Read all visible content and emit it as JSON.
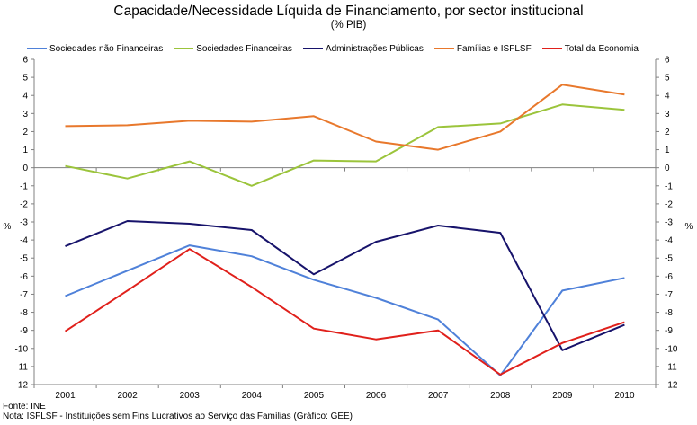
{
  "title": "Capacidade/Necessidade Líquida de Financiamento, por sector institucional",
  "subtitle": "(% PIB)",
  "footer": {
    "source": "Fonte: INE",
    "note": "Nota: ISFLSF - Instituições sem Fins Lucrativos ao Serviço das Famílias  (Gráfico: GEE)"
  },
  "chart_data": {
    "type": "line",
    "title": "Capacidade/Necessidade Líquida de Financiamento, por sector institucional",
    "subtitle": "(% PIB)",
    "xlabel": "",
    "ylabel": "%",
    "ylabel_right": "%",
    "ylim": [
      -12,
      6
    ],
    "yticks": [
      6,
      5,
      4,
      3,
      2,
      1,
      0,
      -1,
      -2,
      -3,
      -4,
      -5,
      -6,
      -7,
      -8,
      -9,
      -10,
      -11,
      -12
    ],
    "legend_position": "top",
    "grid": false,
    "categories": [
      "2001",
      "2002",
      "2003",
      "2004",
      "2005",
      "2006",
      "2007",
      "2008",
      "2009",
      "2010"
    ],
    "series": [
      {
        "name": "Sociedades não Financeiras",
        "color": "#4f81d9",
        "values": [
          -7.1,
          -5.7,
          -4.3,
          -4.9,
          -6.2,
          -7.2,
          -8.4,
          -11.5,
          -6.8,
          -6.1
        ]
      },
      {
        "name": "Sociedades Financeiras",
        "color": "#9bc43b",
        "values": [
          0.1,
          -0.6,
          0.35,
          -1.0,
          0.4,
          0.35,
          2.25,
          2.45,
          3.5,
          3.2
        ]
      },
      {
        "name": "Administrações Públicas",
        "color": "#17136b",
        "values": [
          -4.35,
          -2.95,
          -3.1,
          -3.45,
          -5.9,
          -4.1,
          -3.2,
          -3.6,
          -10.1,
          -8.7
        ]
      },
      {
        "name": "Famílias e ISFLSF",
        "color": "#e8782c",
        "values": [
          2.3,
          2.35,
          2.6,
          2.55,
          2.85,
          1.45,
          1.0,
          2.0,
          4.6,
          4.05
        ]
      },
      {
        "name": "Total da Economia",
        "color": "#e0201b",
        "values": [
          -9.05,
          -6.8,
          -4.5,
          -6.6,
          -8.9,
          -9.5,
          -9.0,
          -11.45,
          -9.7,
          -8.55
        ]
      }
    ]
  }
}
